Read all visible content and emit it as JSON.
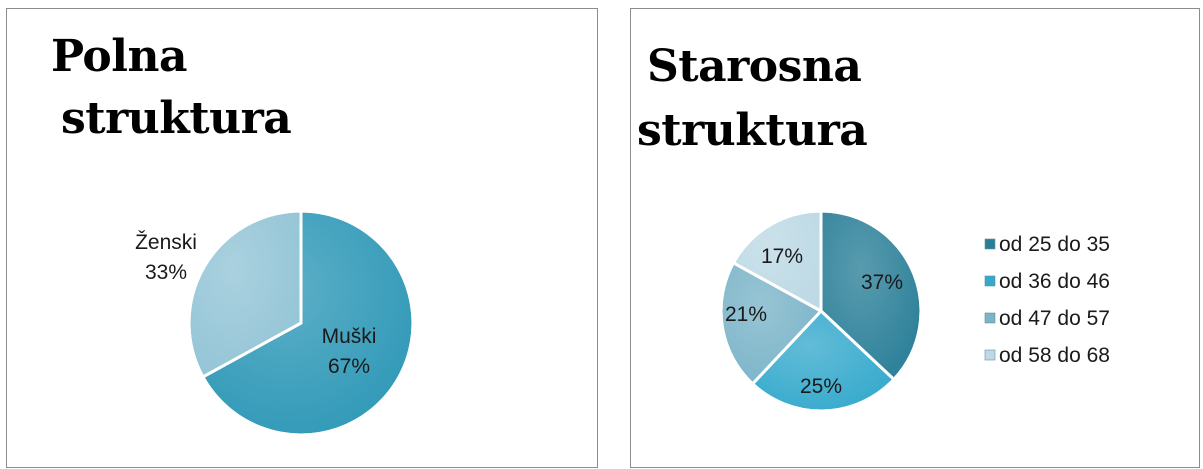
{
  "charts": [
    {
      "title_lines": [
        "Polna",
        "struktura"
      ],
      "chart_data": {
        "type": "pie",
        "title": "Polna struktura",
        "slices": [
          {
            "name": "Muški",
            "value": 67,
            "label": "67%",
            "color": "#2e98b7"
          },
          {
            "name": "Ženski",
            "value": 33,
            "label": "33%",
            "color": "#92c4d6"
          }
        ],
        "legend": "none"
      }
    },
    {
      "title_lines": [
        "Starosna",
        "struktura"
      ],
      "chart_data": {
        "type": "pie",
        "title": "Starosna struktura",
        "slices": [
          {
            "name": "od 25 do 35",
            "value": 37,
            "label": "37%",
            "color": "#2a7f98"
          },
          {
            "name": "od 36 do 46",
            "value": 25,
            "label": "25%",
            "color": "#35a9cc"
          },
          {
            "name": "od 47 do 57",
            "value": 21,
            "label": "21%",
            "color": "#7ab4c8"
          },
          {
            "name": "od 58 do 68",
            "value": 17,
            "label": "17%",
            "color": "#bcd9e5"
          }
        ],
        "legend": "right"
      }
    }
  ]
}
